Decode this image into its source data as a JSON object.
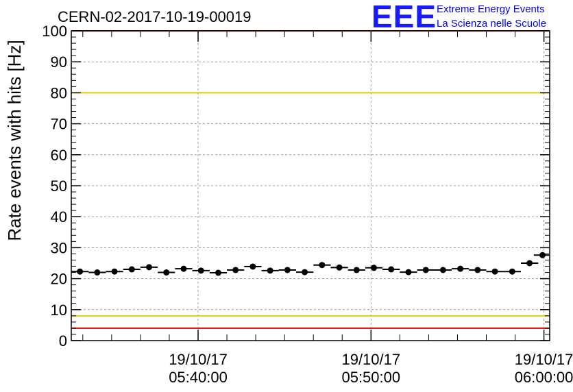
{
  "chart_data": {
    "type": "scatter",
    "title": "CERN-02-2017-10-19-00019",
    "ylabel": "Rate events with hits [Hz]",
    "xlabel": "",
    "ylim": [
      0,
      100
    ],
    "yticks": [
      0,
      10,
      20,
      30,
      40,
      50,
      60,
      70,
      80,
      90,
      100
    ],
    "xlim": [
      "05:32:40",
      "06:00:20"
    ],
    "xticks": [
      {
        "time": "05:40:00",
        "date_label": "19/10/17",
        "time_label": "05:40:00"
      },
      {
        "time": "05:50:00",
        "date_label": "19/10/17",
        "time_label": "05:50:00"
      },
      {
        "time": "06:00:00",
        "date_label": "19/10/17",
        "time_label": "06:00:00"
      }
    ],
    "grid": true,
    "reference_lines": [
      {
        "y": 80,
        "color": "#e8c800"
      },
      {
        "y": 8,
        "color": "#e8c800"
      },
      {
        "y": 100,
        "color": "#e00000"
      },
      {
        "y": 4,
        "color": "#e00000"
      }
    ],
    "bin_width_seconds": 60,
    "points": [
      {
        "x": "05:33:10",
        "y": 22.3
      },
      {
        "x": "05:34:10",
        "y": 22.0
      },
      {
        "x": "05:35:10",
        "y": 22.3
      },
      {
        "x": "05:36:10",
        "y": 23.0
      },
      {
        "x": "05:37:10",
        "y": 23.7
      },
      {
        "x": "05:38:10",
        "y": 22.0
      },
      {
        "x": "05:39:10",
        "y": 23.2
      },
      {
        "x": "05:40:10",
        "y": 22.6
      },
      {
        "x": "05:41:10",
        "y": 21.9
      },
      {
        "x": "05:42:10",
        "y": 22.8
      },
      {
        "x": "05:43:10",
        "y": 23.9
      },
      {
        "x": "05:44:10",
        "y": 22.6
      },
      {
        "x": "05:45:10",
        "y": 22.8
      },
      {
        "x": "05:46:10",
        "y": 22.1
      },
      {
        "x": "05:47:10",
        "y": 24.4
      },
      {
        "x": "05:48:10",
        "y": 23.6
      },
      {
        "x": "05:49:10",
        "y": 22.8
      },
      {
        "x": "05:50:10",
        "y": 23.5
      },
      {
        "x": "05:51:10",
        "y": 23.0
      },
      {
        "x": "05:52:10",
        "y": 22.1
      },
      {
        "x": "05:53:10",
        "y": 22.8
      },
      {
        "x": "05:54:10",
        "y": 22.8
      },
      {
        "x": "05:55:10",
        "y": 23.2
      },
      {
        "x": "05:56:10",
        "y": 22.8
      },
      {
        "x": "05:57:10",
        "y": 22.3
      },
      {
        "x": "05:58:10",
        "y": 22.3
      },
      {
        "x": "05:59:10",
        "y": 25.0
      },
      {
        "x": "05:59:55",
        "y": 27.6
      }
    ],
    "marker_color": "#000000",
    "logo": {
      "mark": "EEE",
      "line1": "Extreme Energy Events",
      "line2": "La Scienza nelle Scuole",
      "color": "#0000ee"
    }
  }
}
